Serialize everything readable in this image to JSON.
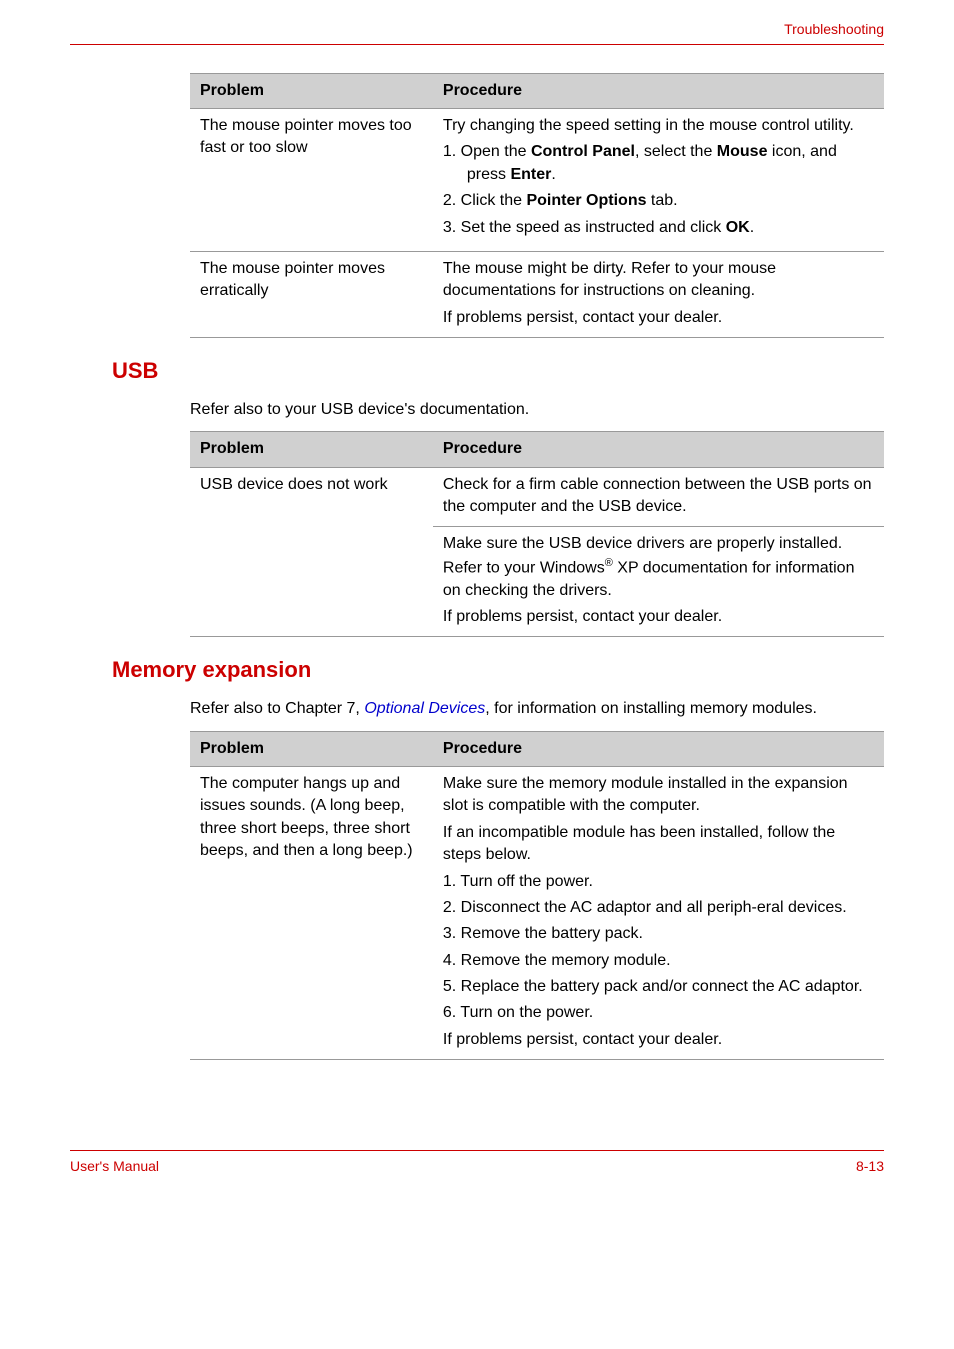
{
  "header": {
    "doc_title": "Troubleshooting"
  },
  "table1": {
    "col_problem": "Problem",
    "col_procedure": "Procedure",
    "row1": {
      "problem": "The mouse pointer moves too fast or too slow",
      "proc_intro": "Try changing the speed setting in the mouse control utility.",
      "step1_pre": "1.  Open the ",
      "step1_b1": "Control Panel",
      "step1_mid": ", select the ",
      "step1_b2": "Mouse",
      "step1_mid2": " icon, and press ",
      "step1_b3": "Enter",
      "step1_end": ".",
      "step2_pre": "2.  Click the ",
      "step2_b1": "Pointer Options",
      "step2_end": " tab.",
      "step3_pre": "3.  Set the speed as instructed and click ",
      "step3_b1": "OK",
      "step3_end": "."
    },
    "row2": {
      "problem": "The mouse pointer moves erratically",
      "proc_p1": "The mouse might be dirty. Refer to your mouse documentations for instructions on cleaning.",
      "proc_p2": "If problems persist, contact your dealer."
    }
  },
  "usb": {
    "heading": "USB",
    "intro": "Refer also to your USB device's documentation.",
    "col_problem": "Problem",
    "col_procedure": "Procedure",
    "row1": {
      "problem": "USB device does not work",
      "proc": "Check for a firm cable connection between the USB ports on the computer and the USB device."
    },
    "row2": {
      "proc_p1_pre": "Make sure the USB device drivers are properly installed. Refer to your Windows",
      "proc_p1_sup": "®",
      "proc_p1_post": " XP documentation for information on checking the drivers.",
      "proc_p2": "If problems persist, contact your dealer."
    }
  },
  "memory": {
    "heading": "Memory expansion",
    "intro_pre": "Refer also to Chapter 7, ",
    "intro_link": "Optional Devices",
    "intro_post": ", for information on installing memory modules.",
    "col_problem": "Problem",
    "col_procedure": "Procedure",
    "row1": {
      "problem": "The computer hangs up and issues sounds. (A long beep, three short beeps, three short beeps, and then a long beep.)",
      "proc_p1": "Make sure the memory module installed in the expansion slot is compatible with the computer.",
      "proc_p2": "If an incompatible module has been installed, follow the steps below.",
      "step1": "1.  Turn off the power.",
      "step2": "2.  Disconnect the AC adaptor and all periph-eral devices.",
      "step3": "3.  Remove the battery pack.",
      "step4": "4.  Remove the memory module.",
      "step5": "5.  Replace the battery pack and/or connect the AC adaptor.",
      "step6": "6.  Turn on the power.",
      "proc_p3": "If problems persist, contact your dealer."
    }
  },
  "footer": {
    "left": "User's Manual",
    "right": "8-13"
  }
}
